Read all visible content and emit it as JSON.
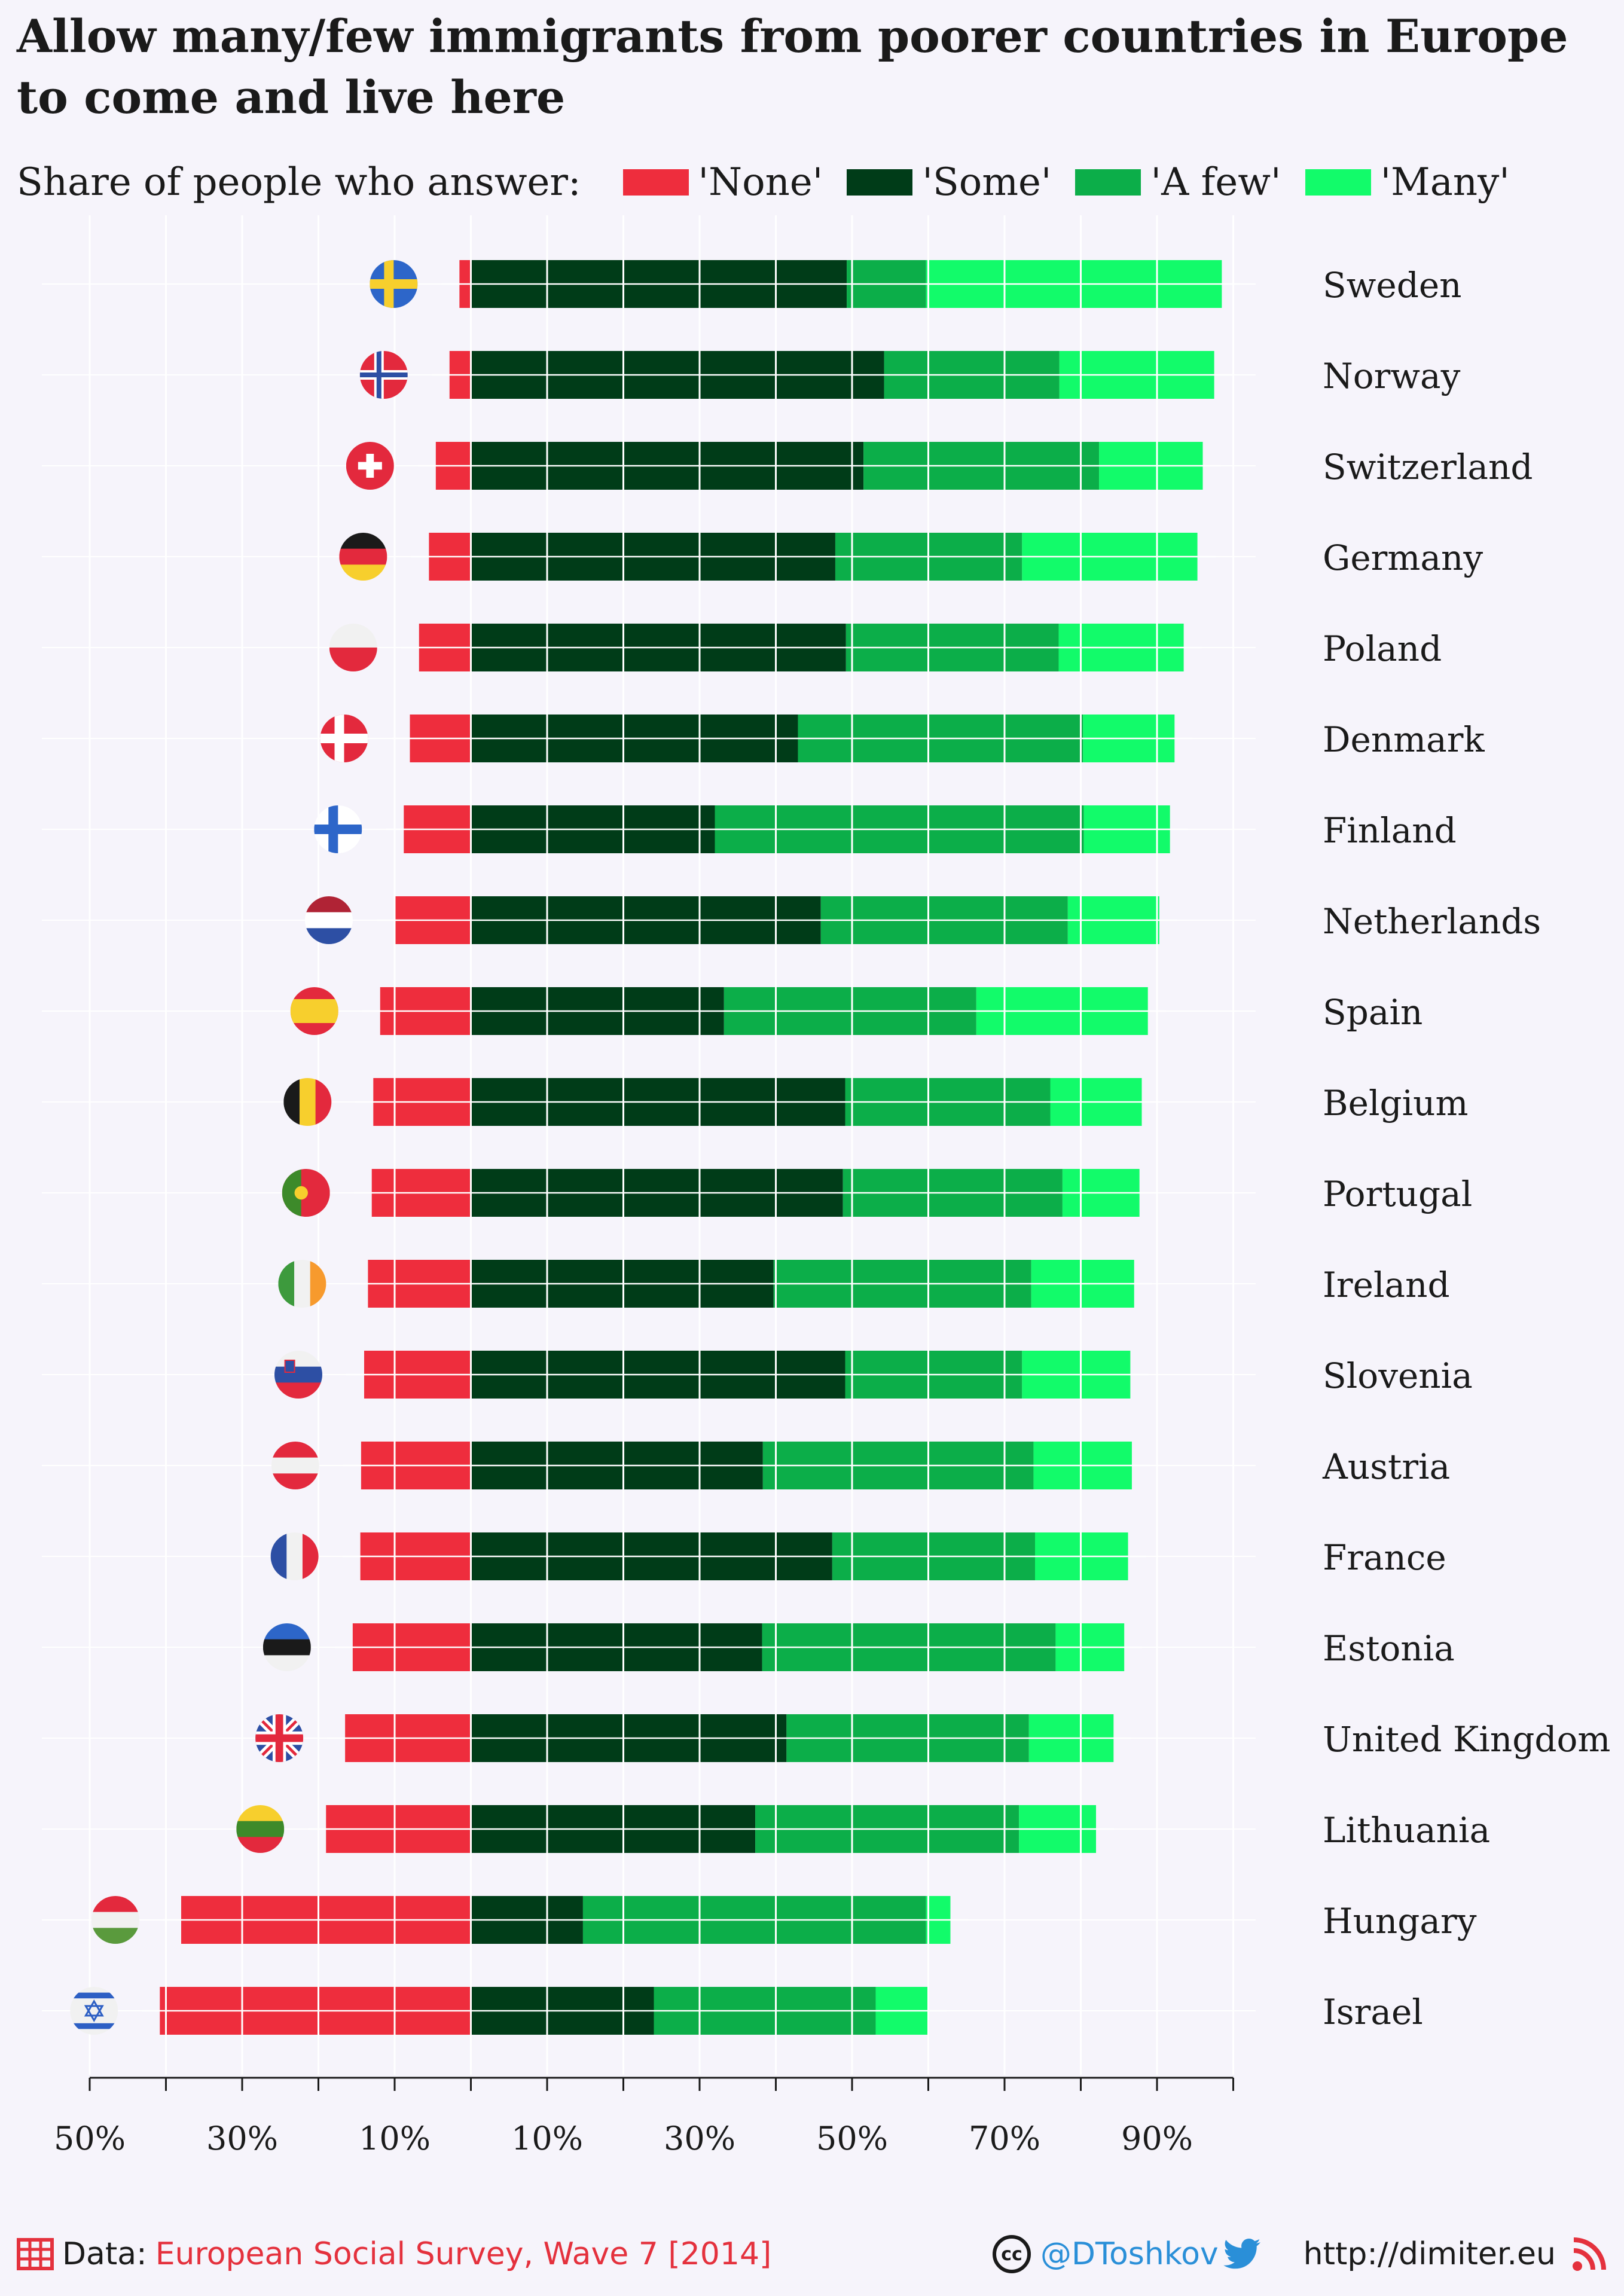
{
  "title": "Allow many/few immigrants from poorer countries in Europe to come and live here",
  "legend": {
    "lead": "Share of people who answer:",
    "items": [
      {
        "label": "'None'",
        "color": "#ee2d3d"
      },
      {
        "label": "'Some'",
        "color": "#003c18"
      },
      {
        "label": "'A few'",
        "color": "#0cae49"
      },
      {
        "label": "'Many'",
        "color": "#12fb6a"
      }
    ]
  },
  "footer": {
    "data_prefix": "Data:",
    "source": "European Social Survey, Wave 7 [2014]",
    "handle": "@DToshkov",
    "url": "http://dimiter.eu",
    "icons": [
      "table-icon",
      "cc-icon",
      "twitter-icon",
      "rss-icon"
    ]
  },
  "chart_data": {
    "type": "bar",
    "stacked": true,
    "diverging": true,
    "orientation": "horizontal",
    "xlim": [
      -50,
      100
    ],
    "x_ticks": [
      -50,
      -30,
      -10,
      10,
      30,
      50,
      70,
      90
    ],
    "x_tick_labels": [
      "50%",
      "30%",
      "10%",
      "10%",
      "30%",
      "50%",
      "70%",
      "90%"
    ],
    "grid": true,
    "legend_position": "top",
    "categories": [
      "Sweden",
      "Norway",
      "Switzerland",
      "Germany",
      "Poland",
      "Denmark",
      "Finland",
      "Netherlands",
      "Spain",
      "Belgium",
      "Portugal",
      "Ireland",
      "Slovenia",
      "Austria",
      "France",
      "Estonia",
      "United Kingdom",
      "Lithuania",
      "Hungary",
      "Israel"
    ],
    "flag_icons": [
      "sweden-flag-icon",
      "norway-flag-icon",
      "switzerland-flag-icon",
      "germany-flag-icon",
      "poland-flag-icon",
      "denmark-flag-icon",
      "finland-flag-icon",
      "netherlands-flag-icon",
      "spain-flag-icon",
      "belgium-flag-icon",
      "portugal-flag-icon",
      "ireland-flag-icon",
      "slovenia-flag-icon",
      "austria-flag-icon",
      "france-flag-icon",
      "estonia-flag-icon",
      "united-kingdom-flag-icon",
      "lithuania-flag-icon",
      "hungary-flag-icon",
      "israel-flag-icon"
    ],
    "series": [
      {
        "name": "'None'",
        "color": "#ee2d3d",
        "values": [
          1.5,
          2.8,
          4.6,
          5.5,
          6.8,
          8.0,
          8.8,
          10.0,
          11.9,
          12.8,
          13.0,
          13.5,
          14.0,
          14.4,
          14.5,
          15.5,
          16.5,
          19.0,
          38.0,
          40.8
        ]
      },
      {
        "name": "'Some'",
        "color": "#003c18",
        "values": [
          49.3,
          54.2,
          51.5,
          47.8,
          49.2,
          42.9,
          32.0,
          45.9,
          33.2,
          49.1,
          48.8,
          39.7,
          49.1,
          38.3,
          47.4,
          38.2,
          41.4,
          37.3,
          14.7,
          24.0
        ]
      },
      {
        "name": "'A few'",
        "color": "#0cae49",
        "values": [
          10.4,
          23.0,
          30.9,
          24.5,
          27.9,
          37.4,
          48.4,
          32.4,
          33.1,
          26.9,
          28.8,
          33.8,
          23.2,
          35.5,
          26.6,
          38.5,
          31.8,
          34.6,
          45.0,
          29.1
        ]
      },
      {
        "name": "'Many'",
        "color": "#12fb6a",
        "values": [
          38.8,
          20.3,
          13.6,
          23.0,
          16.4,
          12.0,
          11.3,
          12.0,
          22.5,
          12.0,
          10.1,
          13.5,
          14.2,
          12.9,
          12.2,
          9.0,
          11.1,
          10.1,
          3.2,
          6.9
        ]
      }
    ]
  }
}
